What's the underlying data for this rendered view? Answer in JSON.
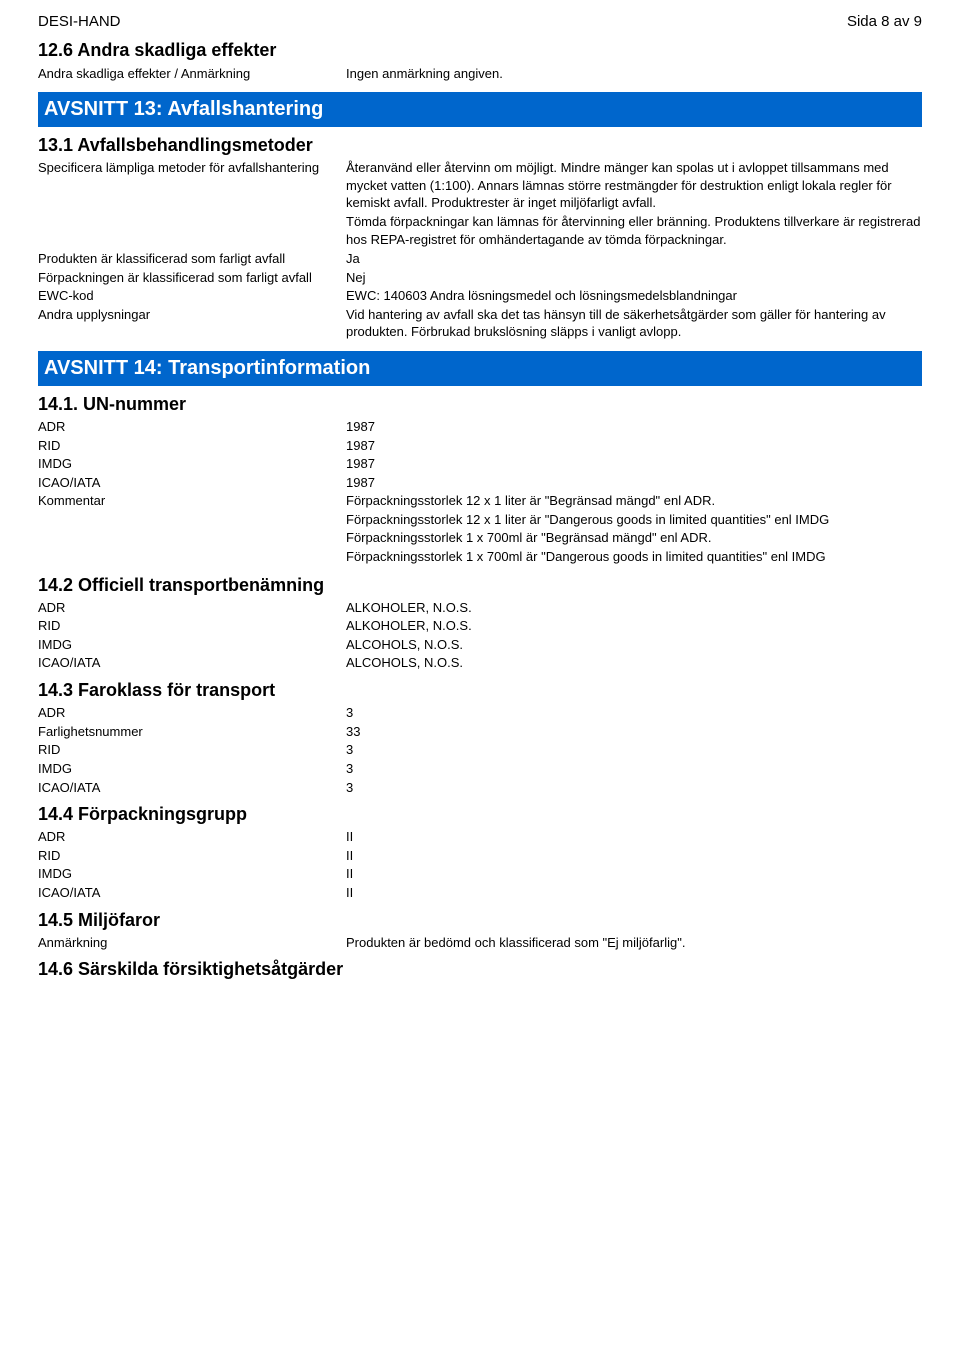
{
  "header": {
    "product": "DESI-HAND",
    "page": "Sida 8 av 9"
  },
  "s12": {
    "heading": "12.6 Andra skadliga effekter",
    "rows": [
      {
        "label": "Andra skadliga effekter / Anmärkning",
        "value": "Ingen anmärkning angiven."
      }
    ]
  },
  "s13": {
    "banner": "AVSNITT 13: Avfallshantering",
    "sub": "13.1 Avfallsbehandlingsmetoder",
    "rows": [
      {
        "label": "Specificera lämpliga metoder för avfallshantering",
        "value": "Återanvänd eller återvinn om möjligt. Mindre mänger kan spolas ut i avloppet tillsammans med mycket vatten (1:100). Annars lämnas större restmängder för destruktion enligt lokala regler för kemiskt avfall. Produktrester är inget miljöfarligt avfall.\nTömda förpackningar kan lämnas för återvinning eller bränning. Produktens tillverkare är registrerad hos REPA-registret för omhändertagande av tömda förpackningar."
      },
      {
        "label": "Produkten är klassificerad som farligt avfall",
        "value": "Ja"
      },
      {
        "label": "Förpackningen är klassificerad som farligt avfall",
        "value": "Nej"
      },
      {
        "label": "EWC-kod",
        "value": "EWC: 140603 Andra lösningsmedel och lösningsmedelsblandningar"
      },
      {
        "label": "Andra upplysningar",
        "value": "Vid hantering av avfall ska det tas hänsyn till de säkerhetsåtgärder som gäller för hantering av produkten. Förbrukad brukslösning släpps i vanligt avlopp."
      }
    ]
  },
  "s14": {
    "banner": "AVSNITT 14: Transportinformation",
    "sub1": {
      "heading": "14.1. UN-nummer",
      "rows": [
        {
          "label": "ADR",
          "value": "1987"
        },
        {
          "label": "RID",
          "value": "1987"
        },
        {
          "label": "IMDG",
          "value": "1987"
        },
        {
          "label": "ICAO/IATA",
          "value": "1987"
        },
        {
          "label": "Kommentar",
          "value": "Förpackningsstorlek 12 x 1 liter är \"Begränsad mängd\" enl ADR.\nFörpackningsstorlek 12 x 1 liter är \"Dangerous goods in limited quantities\" enl IMDG\nFörpackningsstorlek 1 x 700ml är \"Begränsad mängd\" enl ADR.\nFörpackningsstorlek 1 x 700ml är \"Dangerous goods in limited quantities\" enl IMDG"
        }
      ]
    },
    "sub2": {
      "heading": "14.2 Officiell transportbenämning",
      "rows": [
        {
          "label": "ADR",
          "value": "ALKOHOLER, N.O.S."
        },
        {
          "label": "RID",
          "value": "ALKOHOLER, N.O.S."
        },
        {
          "label": "IMDG",
          "value": "ALCOHOLS, N.O.S."
        },
        {
          "label": "ICAO/IATA",
          "value": "ALCOHOLS, N.O.S."
        }
      ]
    },
    "sub3": {
      "heading": "14.3 Faroklass för transport",
      "rows": [
        {
          "label": "ADR",
          "value": "3"
        },
        {
          "label": "Farlighetsnummer",
          "value": "33"
        },
        {
          "label": "RID",
          "value": "3"
        },
        {
          "label": "IMDG",
          "value": "3"
        },
        {
          "label": "ICAO/IATA",
          "value": "3"
        }
      ]
    },
    "sub4": {
      "heading": "14.4 Förpackningsgrupp",
      "rows": [
        {
          "label": "ADR",
          "value": "II"
        },
        {
          "label": "RID",
          "value": "II"
        },
        {
          "label": "IMDG",
          "value": "II"
        },
        {
          "label": "ICAO/IATA",
          "value": "II"
        }
      ]
    },
    "sub5": {
      "heading": "14.5 Miljöfaror",
      "rows": [
        {
          "label": "Anmärkning",
          "value": "Produkten är bedömd och klassificerad som \"Ej miljöfarlig\"."
        }
      ]
    },
    "sub6": {
      "heading": "14.6 Särskilda försiktighetsåtgärder"
    }
  }
}
